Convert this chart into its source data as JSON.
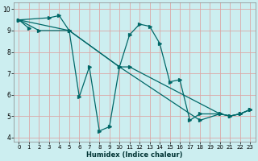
{
  "xlabel": "Humidex (Indice chaleur)",
  "xlim": [
    -0.5,
    23.5
  ],
  "ylim": [
    3.8,
    10.3
  ],
  "yticks": [
    4,
    5,
    6,
    7,
    8,
    9,
    10
  ],
  "xticks": [
    0,
    1,
    2,
    3,
    4,
    5,
    6,
    7,
    8,
    9,
    10,
    11,
    12,
    13,
    14,
    15,
    16,
    17,
    18,
    19,
    20,
    21,
    22,
    23
  ],
  "bg_color": "#cceef0",
  "line_color": "#006868",
  "grid_color": "#dba8a8",
  "line_wiggly": {
    "x": [
      0,
      3,
      4,
      5,
      6,
      7,
      8,
      9,
      10,
      11,
      12,
      13,
      14,
      15,
      16,
      17,
      18,
      20,
      21,
      22,
      23
    ],
    "y": [
      9.5,
      9.6,
      9.7,
      9.0,
      5.9,
      7.3,
      4.3,
      4.5,
      7.3,
      8.8,
      9.3,
      9.2,
      8.4,
      6.6,
      6.7,
      4.8,
      5.1,
      5.1,
      5.0,
      5.1,
      5.3
    ]
  },
  "line_top_diag": {
    "x": [
      0,
      2,
      5,
      10,
      11,
      20,
      21,
      22,
      23
    ],
    "y": [
      9.5,
      9.0,
      9.0,
      7.3,
      7.3,
      5.1,
      5.0,
      5.1,
      5.3
    ]
  },
  "line_mid_diag": {
    "x": [
      0,
      5,
      10,
      18,
      20,
      21,
      22,
      23
    ],
    "y": [
      9.5,
      9.0,
      7.3,
      4.8,
      5.1,
      5.0,
      5.1,
      5.3
    ]
  },
  "line_short": {
    "x": [
      0,
      1
    ],
    "y": [
      9.5,
      9.1
    ]
  }
}
